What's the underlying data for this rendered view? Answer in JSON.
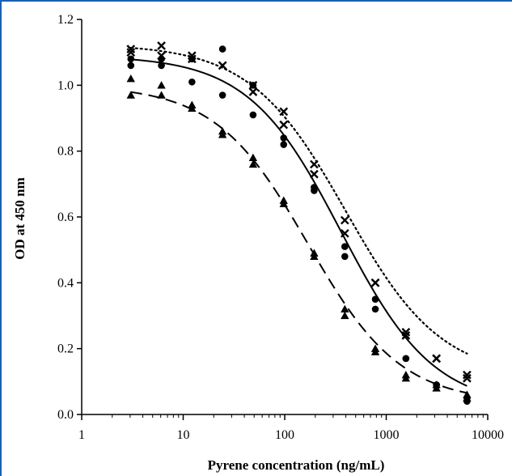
{
  "chart_data": {
    "type": "scatter",
    "title": "",
    "xlabel": "Pyrene concentration  (ng/mL)",
    "ylabel": "OD at 450 nm",
    "xscale": "log",
    "xlim": [
      1,
      10000
    ],
    "ylim": [
      0,
      1.2
    ],
    "x_ticks": [
      1,
      10,
      100,
      1000,
      10000
    ],
    "x_tick_labels": [
      "1",
      "10",
      "100",
      "1000",
      "10000"
    ],
    "y_ticks": [
      0,
      0.2,
      0.4,
      0.6,
      0.8,
      1.0,
      1.2
    ],
    "y_tick_labels": [
      "0.0",
      "0.2",
      "0.4",
      "0.6",
      "0.8",
      "1.0",
      "1.2"
    ],
    "grid": false,
    "legend": "none",
    "x": [
      3.05,
      6.1,
      12.2,
      24.4,
      48.8,
      97.7,
      195,
      391,
      781,
      1563,
      3125,
      6250
    ],
    "series": [
      {
        "marker": "cross",
        "fit_line": "dotted",
        "points": [
          [
            3.05,
            1.11
          ],
          [
            3.05,
            1.1
          ],
          [
            6.1,
            1.12
          ],
          [
            6.1,
            1.09
          ],
          [
            12.2,
            1.09
          ],
          [
            12.2,
            1.08
          ],
          [
            24.4,
            1.06
          ],
          [
            24.4,
            1.06
          ],
          [
            48.8,
            1.0
          ],
          [
            48.8,
            0.98
          ],
          [
            97.7,
            0.92
          ],
          [
            97.7,
            0.88
          ],
          [
            195,
            0.76
          ],
          [
            195,
            0.73
          ],
          [
            391,
            0.59
          ],
          [
            391,
            0.55
          ],
          [
            781,
            0.4
          ],
          [
            781,
            0.4
          ],
          [
            1563,
            0.25
          ],
          [
            1563,
            0.24
          ],
          [
            3125,
            0.17
          ],
          [
            3125,
            0.17
          ],
          [
            6250,
            0.12
          ],
          [
            6250,
            0.11
          ]
        ],
        "fit": [
          1.125,
          0.11,
          400,
          0.92
        ]
      },
      {
        "marker": "circle",
        "fit_line": "solid",
        "points": [
          [
            3.05,
            1.08
          ],
          [
            3.05,
            1.06
          ],
          [
            6.1,
            1.08
          ],
          [
            6.1,
            1.06
          ],
          [
            12.2,
            1.08
          ],
          [
            12.2,
            1.01
          ],
          [
            24.4,
            1.11
          ],
          [
            24.4,
            0.97
          ],
          [
            48.8,
            1.0
          ],
          [
            48.8,
            0.91
          ],
          [
            97.7,
            0.84
          ],
          [
            97.7,
            0.82
          ],
          [
            195,
            0.69
          ],
          [
            195,
            0.68
          ],
          [
            391,
            0.51
          ],
          [
            391,
            0.48
          ],
          [
            781,
            0.35
          ],
          [
            781,
            0.32
          ],
          [
            1563,
            0.17
          ],
          [
            1563,
            0.17
          ],
          [
            3125,
            0.09
          ],
          [
            3125,
            0.09
          ],
          [
            6250,
            0.05
          ],
          [
            6250,
            0.04
          ]
        ],
        "fit": [
          1.09,
          0.02,
          360,
          0.95
        ]
      },
      {
        "marker": "triangle",
        "fit_line": "dashed",
        "points": [
          [
            3.05,
            1.02
          ],
          [
            3.05,
            0.97
          ],
          [
            6.1,
            1.0
          ],
          [
            6.1,
            0.97
          ],
          [
            12.2,
            0.94
          ],
          [
            12.2,
            0.93
          ],
          [
            24.4,
            0.86
          ],
          [
            24.4,
            0.85
          ],
          [
            48.8,
            0.78
          ],
          [
            48.8,
            0.76
          ],
          [
            97.7,
            0.65
          ],
          [
            97.7,
            0.64
          ],
          [
            195,
            0.49
          ],
          [
            195,
            0.48
          ],
          [
            391,
            0.32
          ],
          [
            391,
            0.3
          ],
          [
            781,
            0.2
          ],
          [
            781,
            0.19
          ],
          [
            1563,
            0.12
          ],
          [
            1563,
            0.11
          ],
          [
            3125,
            0.09
          ],
          [
            3125,
            0.08
          ],
          [
            6250,
            0.06
          ],
          [
            6250,
            0.05
          ]
        ],
        "fit": [
          1.0,
          0.035,
          170,
          0.95
        ]
      }
    ]
  }
}
